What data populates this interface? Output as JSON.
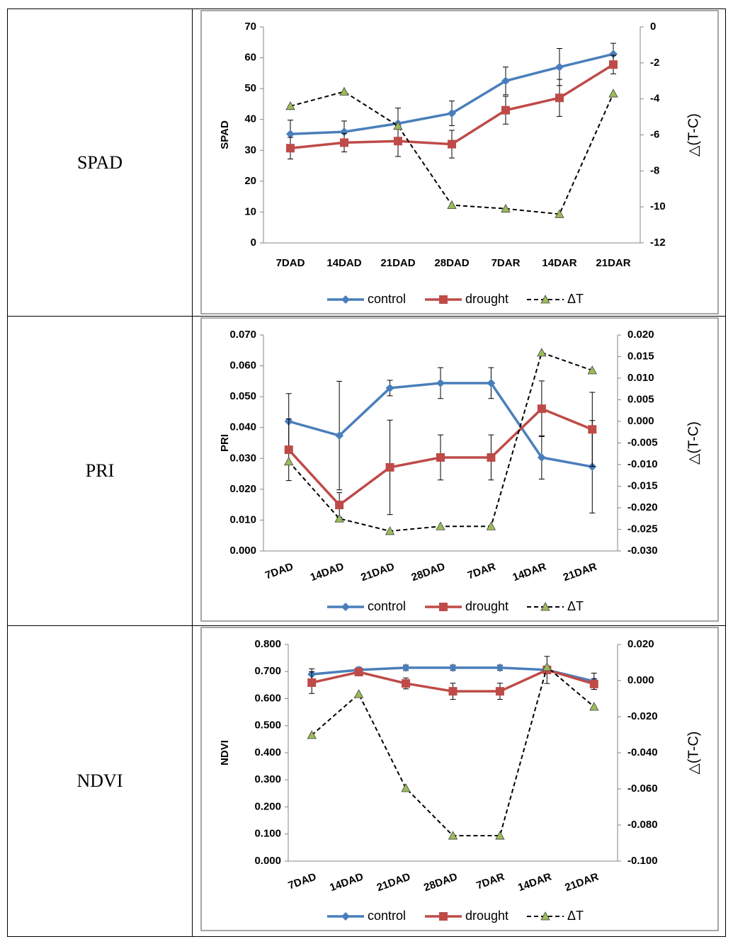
{
  "table": {
    "rows": [
      {
        "label": "SPAD"
      },
      {
        "label": "PRI"
      },
      {
        "label": "NDVI"
      }
    ]
  },
  "chart_data": [
    {
      "type": "line",
      "y_label": "SPAD",
      "y2_label": "△(T-C)",
      "categories": [
        "7DAD",
        "14DAD",
        "21DAD",
        "28DAD",
        "7DAR",
        "14DAR",
        "21DAR"
      ],
      "ylim": [
        0,
        70
      ],
      "yticks": [
        0,
        10,
        20,
        30,
        40,
        50,
        60,
        70
      ],
      "y2lim": [
        -12,
        0
      ],
      "y2ticks": [
        -12,
        -10,
        -8,
        -6,
        -4,
        -2,
        0
      ],
      "series": [
        {
          "name": "control",
          "color": "#4a7ebb",
          "marker": "diamond",
          "values": [
            35.3,
            36,
            38.7,
            42,
            52.5,
            57,
            61.2
          ],
          "errors": [
            4.5,
            3.5,
            5,
            4,
            4.5,
            6,
            3.5
          ]
        },
        {
          "name": "drought",
          "color": "#be4b48",
          "marker": "square",
          "values": [
            30.7,
            32.5,
            33,
            32,
            43,
            47,
            57.8
          ],
          "errors": [
            3.5,
            3,
            5,
            4.5,
            4.5,
            6,
            3
          ]
        },
        {
          "name": "ΔT",
          "color": "#000000",
          "marker": "triangle",
          "marker_color": "#9bbb59",
          "dashed": true,
          "axis": "y2",
          "values": [
            -4.4,
            -3.6,
            -5.5,
            -9.9,
            -10.1,
            -10.4,
            -3.7
          ]
        }
      ]
    },
    {
      "type": "line",
      "y_label": "PRI",
      "y2_label": "△(T-C)",
      "categories": [
        "7DAD",
        "14DAD",
        "21DAD",
        "28DAD",
        "7DAR",
        "14DAR",
        "21DAR"
      ],
      "ylim": [
        0,
        0.07
      ],
      "yticks": [
        {
          "value": 0,
          "label": "0.000"
        },
        {
          "value": 0.01,
          "label": "0.010"
        },
        {
          "value": 0.02,
          "label": "0.020"
        },
        {
          "value": 0.03,
          "label": "0.030"
        },
        {
          "value": 0.04,
          "label": "0.040"
        },
        {
          "value": 0.05,
          "label": "0.050"
        },
        {
          "value": 0.06,
          "label": "0.060"
        },
        {
          "value": 0.07,
          "label": "0.070"
        }
      ],
      "y2lim": [
        -0.03,
        0.02
      ],
      "y2ticks": [
        {
          "value": -0.03,
          "label": "-0.030"
        },
        {
          "value": -0.025,
          "label": "-0.025"
        },
        {
          "value": -0.02,
          "label": "-0.020"
        },
        {
          "value": -0.015,
          "label": "-0.015"
        },
        {
          "value": -0.01,
          "label": "-0.010"
        },
        {
          "value": -0.005,
          "label": "-0.005"
        },
        {
          "value": 0,
          "label": "0.000"
        },
        {
          "value": 0.005,
          "label": "0.005"
        },
        {
          "value": 0.01,
          "label": "0.010"
        },
        {
          "value": 0.015,
          "label": "0.015"
        },
        {
          "value": 0.02,
          "label": "0.020"
        }
      ],
      "series": [
        {
          "name": "control",
          "color": "#4a7ebb",
          "marker": "diamond",
          "values": [
            0.042,
            0.0374,
            0.0528,
            0.0544,
            0.0544,
            0.0303,
            0.0273
          ],
          "errors": [
            0.009,
            0.0176,
            0.0025,
            0.005,
            0.005,
            0.007,
            0.015
          ]
        },
        {
          "name": "drought",
          "color": "#be4b48",
          "marker": "square",
          "values": [
            0.0328,
            0.0149,
            0.0271,
            0.0303,
            0.0303,
            0.0461,
            0.0394
          ],
          "errors": [
            0.01,
            0.004,
            0.0153,
            0.0073,
            0.0073,
            0.009,
            0.012
          ]
        },
        {
          "name": "ΔT",
          "color": "#000000",
          "marker": "triangle",
          "marker_color": "#9bbb59",
          "dashed": true,
          "axis": "y2",
          "values": [
            -0.0093,
            -0.0225,
            -0.0254,
            -0.0243,
            -0.0243,
            0.0159,
            0.0118
          ]
        }
      ]
    },
    {
      "type": "line",
      "y_label": "NDVI",
      "y2_label": "△(T-C)",
      "categories": [
        "7DAD",
        "14DAD",
        "21DAD",
        "28DAD",
        "7DAR",
        "14DAR",
        "21DAR"
      ],
      "ylim": [
        0,
        0.8
      ],
      "yticks": [
        {
          "value": 0,
          "label": "0.000"
        },
        {
          "value": 0.1,
          "label": "0.100"
        },
        {
          "value": 0.2,
          "label": "0.200"
        },
        {
          "value": 0.3,
          "label": "0.300"
        },
        {
          "value": 0.4,
          "label": "0.400"
        },
        {
          "value": 0.5,
          "label": "0.500"
        },
        {
          "value": 0.6,
          "label": "0.600"
        },
        {
          "value": 0.7,
          "label": "0.700"
        },
        {
          "value": 0.8,
          "label": "0.800"
        }
      ],
      "y2lim": [
        -0.1,
        0.02
      ],
      "y2ticks": [
        {
          "value": -0.1,
          "label": "-0.100"
        },
        {
          "value": -0.08,
          "label": "-0.080"
        },
        {
          "value": -0.06,
          "label": "-0.060"
        },
        {
          "value": -0.04,
          "label": "-0.040"
        },
        {
          "value": -0.02,
          "label": "-0.020"
        },
        {
          "value": 0,
          "label": "0.000"
        },
        {
          "value": 0.02,
          "label": "0.020"
        }
      ],
      "series": [
        {
          "name": "control",
          "color": "#4a7ebb",
          "marker": "diamond",
          "values": [
            0.69,
            0.706,
            0.714,
            0.714,
            0.714,
            0.706,
            0.664
          ],
          "errors": [
            0.02,
            0.01,
            0.01,
            0.01,
            0.01,
            0.01,
            0.03
          ]
        },
        {
          "name": "drought",
          "color": "#be4b48",
          "marker": "square",
          "values": [
            0.659,
            0.698,
            0.656,
            0.627,
            0.627,
            0.706,
            0.654
          ],
          "errors": [
            0.04,
            0.01,
            0.02,
            0.03,
            0.03,
            0.05,
            0.02
          ]
        },
        {
          "name": "ΔT",
          "color": "#000000",
          "marker": "triangle",
          "marker_color": "#9bbb59",
          "dashed": true,
          "axis": "y2",
          "values": [
            -0.0302,
            -0.0075,
            -0.0596,
            -0.0859,
            -0.0859,
            0.0075,
            -0.0145
          ]
        }
      ]
    }
  ]
}
